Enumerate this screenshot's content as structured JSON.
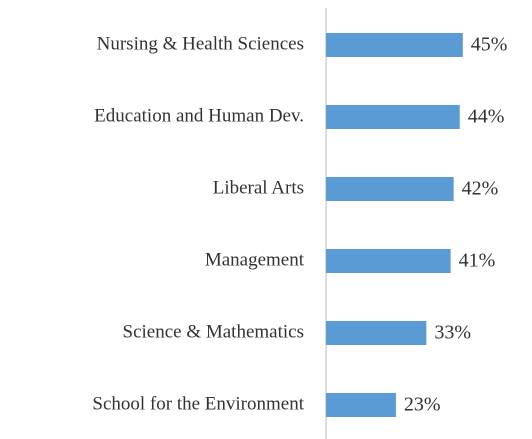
{
  "chart_data": {
    "type": "bar",
    "orientation": "horizontal",
    "categories": [
      "Nursing & Health Sciences",
      "Education and Human Dev.",
      "Liberal Arts",
      "Management",
      "Science & Mathematics",
      "School for the Environment"
    ],
    "values": [
      45,
      44,
      42,
      41,
      33,
      23
    ],
    "value_labels": [
      "45%",
      "44%",
      "42%",
      "41%",
      "33%",
      "23%"
    ],
    "color": "#5b9bd5",
    "xlim": [
      0,
      50
    ]
  }
}
